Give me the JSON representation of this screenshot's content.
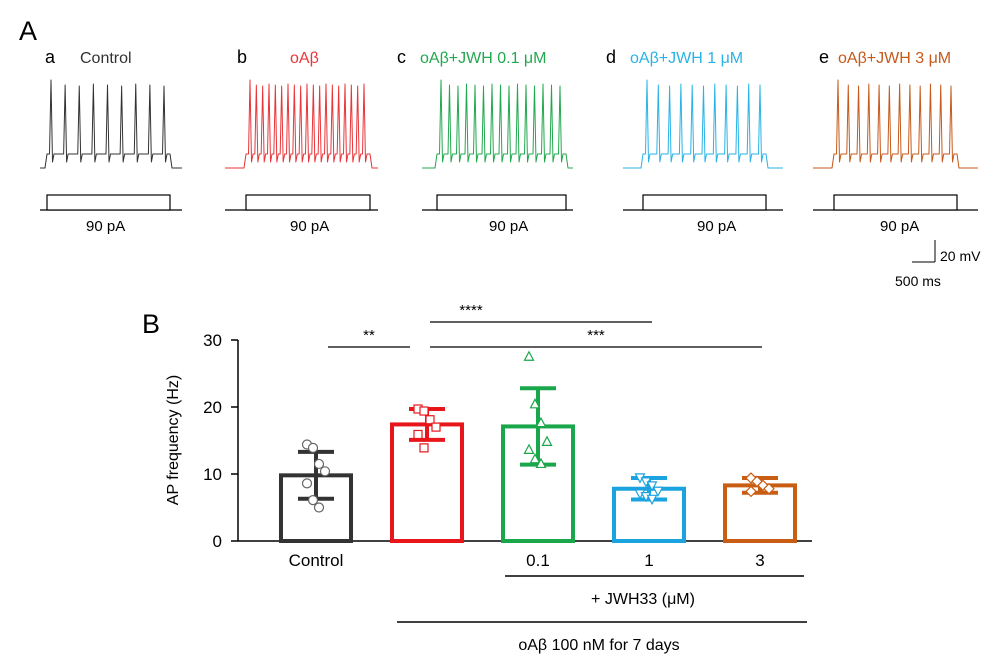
{
  "panel_a": {
    "label": "A",
    "traces": [
      {
        "sub": "a",
        "title": "Control",
        "color": "#333333",
        "stim": "90 pA",
        "spikes": 9
      },
      {
        "sub": "b",
        "title": "oAβ",
        "color": "#e8363a",
        "stim": "90 pA",
        "spikes": 19
      },
      {
        "sub": "c",
        "title": "oAβ+JWH 0.1 μM",
        "color": "#22a84f",
        "stim": "90 pA",
        "spikes": 15
      },
      {
        "sub": "d",
        "title": "oAβ+JWH 1 μM",
        "color": "#2ab3e6",
        "stim": "90 pA",
        "spikes": 11
      },
      {
        "sub": "e",
        "title": "oAβ+JWH 3 μM",
        "color": "#c55a1b",
        "stim": "90 pA",
        "spikes": 12
      }
    ],
    "scale_bar": {
      "voltage": "20 mV",
      "time": "500 ms"
    }
  },
  "panel_b_label": "B",
  "chart_data": {
    "type": "bar",
    "ylabel": "AP frequency (Hz)",
    "ylim": [
      0,
      30
    ],
    "yticks": [
      0,
      10,
      20,
      30
    ],
    "categories": [
      "Control",
      "",
      "0.1",
      "1",
      "3"
    ],
    "colors": [
      "#333333",
      "#e8161b",
      "#1aa64b",
      "#1ba3e0",
      "#c95d13"
    ],
    "values": [
      9.8,
      17.4,
      17.1,
      7.8,
      8.3
    ],
    "sd": [
      3.5,
      2.3,
      5.7,
      1.6,
      1.1
    ],
    "markers": [
      "circle",
      "square",
      "triangle",
      "triangle-down",
      "diamond"
    ],
    "points": [
      [
        14.4,
        13.9,
        11.5,
        10.4,
        8.6,
        6.1,
        5.0
      ],
      [
        19.7,
        19.4,
        18.1,
        17.0,
        15.9,
        13.9
      ],
      [
        27.5,
        20.4,
        17.6,
        14.8,
        13.6,
        12.2,
        11.5
      ],
      [
        9.5,
        8.9,
        8.3,
        7.5,
        7.1,
        6.7,
        6.3
      ],
      [
        9.4,
        8.9,
        8.3,
        7.8,
        7.4
      ]
    ],
    "significance": [
      {
        "label": "**",
        "from": 0,
        "to": 1
      },
      {
        "label": "****",
        "from": 1,
        "to": 3
      },
      {
        "label": "***",
        "from": 1,
        "to": 4
      }
    ],
    "treatment_labels": {
      "jwh": "+ JWH33 (μM)",
      "oab": "oAβ 100 nM  for 7 days"
    }
  }
}
